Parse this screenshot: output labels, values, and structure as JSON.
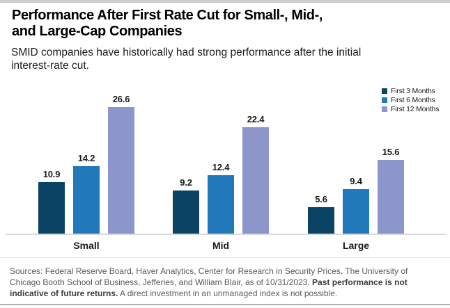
{
  "header": {
    "title_lines": [
      "Performance After First Rate Cut for Small-, Mid-,",
      "and Large-Cap Companies"
    ],
    "subtitle": "SMID companies have historically had strong performance after the initial interest-rate cut."
  },
  "chart_data": {
    "type": "bar",
    "categories": [
      "Small",
      "Mid",
      "Large"
    ],
    "series": [
      {
        "name": "First 3 Months",
        "color": "#0B4365",
        "values": [
          10.9,
          9.2,
          5.6
        ]
      },
      {
        "name": "First 6 Months",
        "color": "#2179BC",
        "values": [
          14.2,
          12.4,
          9.4
        ]
      },
      {
        "name": "First 12 Months",
        "color": "#8C96CB",
        "values": [
          26.6,
          22.4,
          15.6
        ]
      }
    ],
    "value_labels_shown": true,
    "legend_position": "top-right",
    "ylim": [
      0,
      28
    ],
    "grid": false,
    "axis_line_color": "#D9D9D9"
  },
  "footer": {
    "lines": [
      [
        {
          "text": "Sources: Federal Reserve Board, Haver Analytics, Center for Research in Security Prices, The University of",
          "bold": false
        }
      ],
      [
        {
          "text": "Chicago Booth School of Business, Jefferies, and William Blair, as of 10/31/2023. ",
          "bold": false
        },
        {
          "text": "Past performance is not",
          "bold": true
        }
      ],
      [
        {
          "text": "indicative of future returns.",
          "bold": true
        },
        {
          "text": " A direct investment in an unmanaged index is not possible.",
          "bold": false
        }
      ]
    ]
  },
  "colors": {
    "top_bar": "#CDCDCD",
    "axis_line": "#D9D9D9",
    "footer_separator": "#E4E4E4",
    "bottom_line": "#B0B0B0"
  }
}
